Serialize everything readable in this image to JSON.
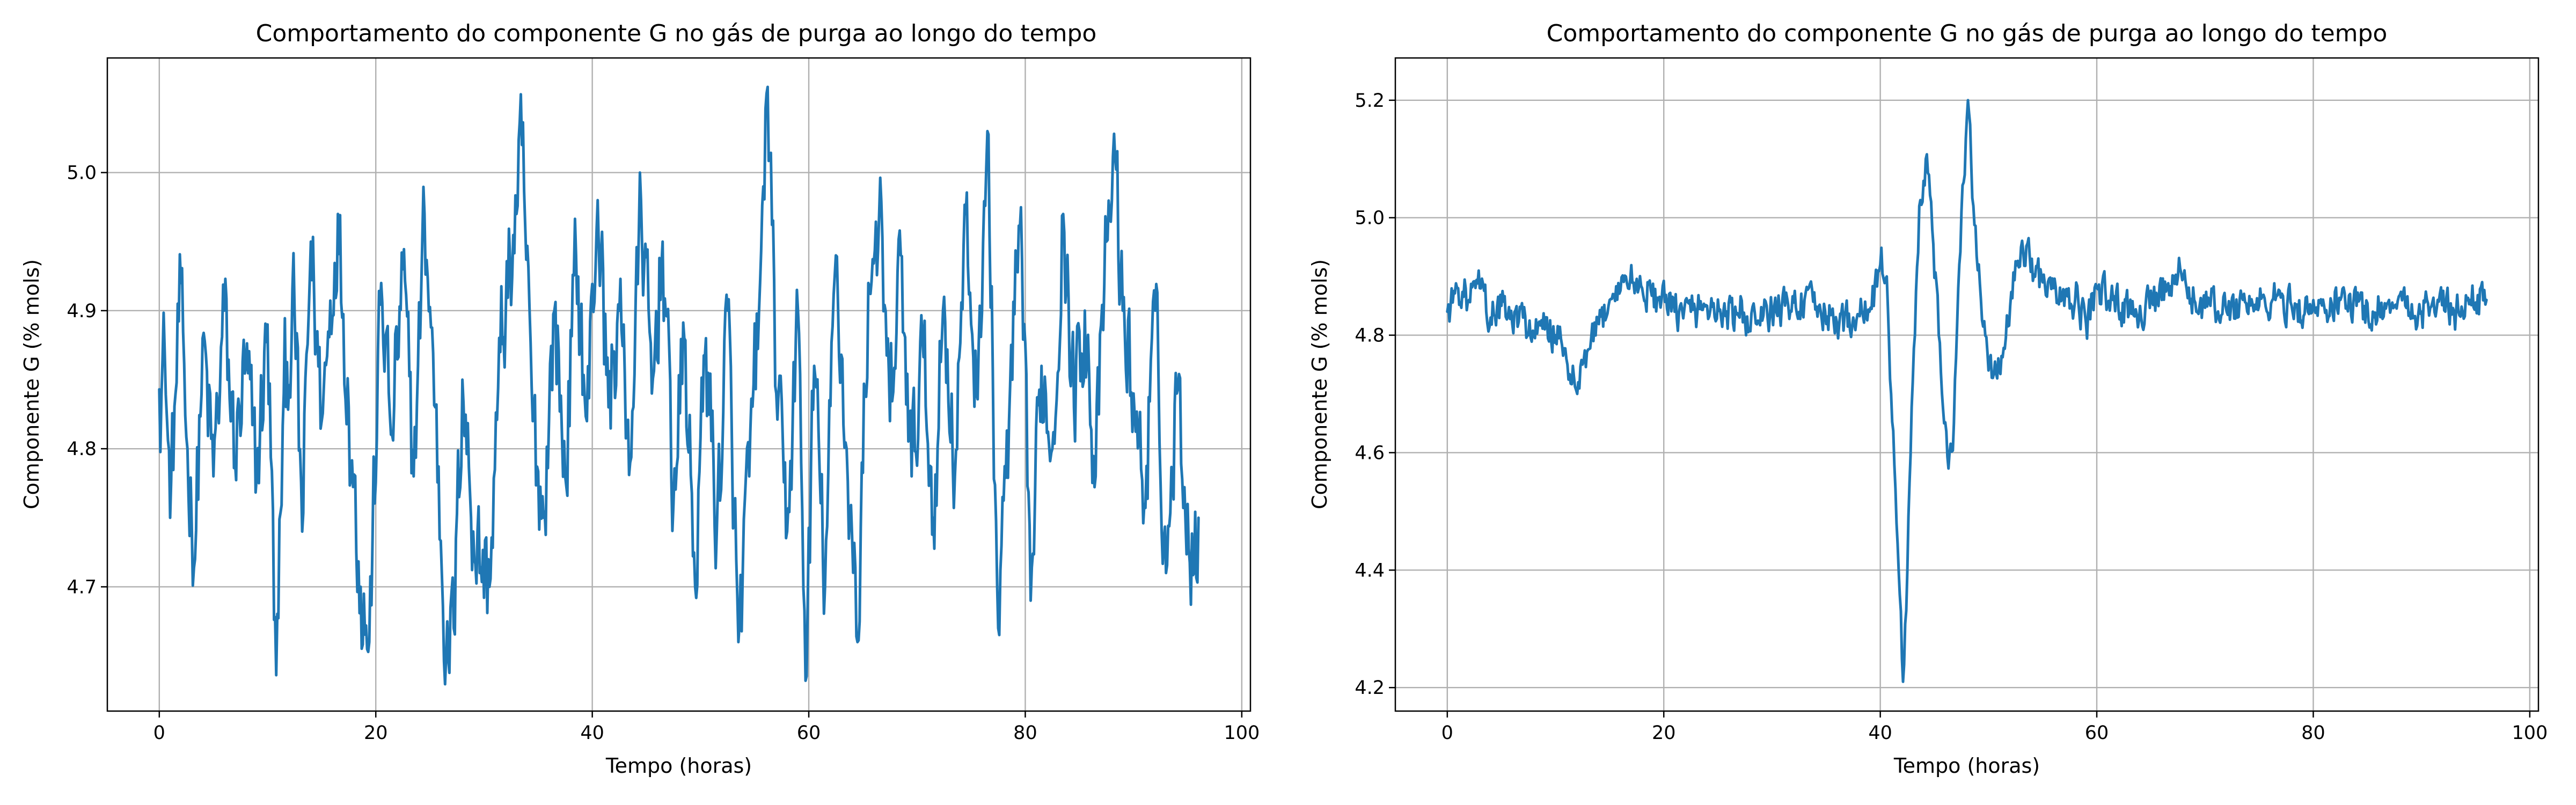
{
  "chart_data": [
    {
      "type": "line",
      "title": "Comportamento do componente G no gás de purga ao longo do tempo",
      "xlabel": "Tempo (horas)",
      "ylabel": "Componente G (% mols)",
      "xlim": [
        -4.8,
        100.8
      ],
      "ylim": [
        4.61,
        5.083
      ],
      "xticks": [
        0,
        20,
        40,
        60,
        80,
        100
      ],
      "xtick_labels": [
        "0",
        "20",
        "40",
        "60",
        "80",
        "100"
      ],
      "yticks": [
        4.7,
        4.8,
        4.9,
        5.0
      ],
      "ytick_labels": [
        "4.7",
        "4.8",
        "4.9",
        "5.0"
      ],
      "grid": true,
      "color": "#1f77b4",
      "sampling_interval_hours": 0.1,
      "series": [
        {
          "x_start": 0,
          "x_end": 96,
          "step": 0.1,
          "anchors": [
            [
              0,
              4.843
            ],
            [
              0.5,
              4.87
            ],
            [
              1,
              4.75
            ],
            [
              1.5,
              4.84
            ],
            [
              2,
              4.92
            ],
            [
              2.6,
              4.8
            ],
            [
              3.3,
              4.72
            ],
            [
              4,
              4.88
            ],
            [
              5,
              4.78
            ],
            [
              6,
              4.9
            ],
            [
              7,
              4.79
            ],
            [
              8,
              4.86
            ],
            [
              9,
              4.78
            ],
            [
              10,
              4.89
            ],
            [
              10.8,
              4.636
            ],
            [
              11.5,
              4.84
            ],
            [
              12.5,
              4.9
            ],
            [
              13.2,
              4.74
            ],
            [
              14,
              4.95
            ],
            [
              15,
              4.82
            ],
            [
              16.5,
              4.97
            ],
            [
              17.5,
              4.83
            ],
            [
              18.6,
              4.7
            ],
            [
              19.4,
              4.66
            ],
            [
              20.5,
              4.92
            ],
            [
              21.5,
              4.81
            ],
            [
              22.5,
              4.93
            ],
            [
              23.5,
              4.78
            ],
            [
              24.5,
              4.97
            ],
            [
              25.5,
              4.83
            ],
            [
              26.5,
              4.65
            ],
            [
              27.2,
              4.67
            ],
            [
              28,
              4.85
            ],
            [
              29,
              4.74
            ],
            [
              30.5,
              4.7
            ],
            [
              31.5,
              4.87
            ],
            [
              33,
              4.97
            ],
            [
              33.5,
              5.02
            ],
            [
              34.5,
              4.82
            ],
            [
              35.5,
              4.75
            ],
            [
              36.5,
              4.9
            ],
            [
              37.5,
              4.78
            ],
            [
              38.5,
              4.94
            ],
            [
              39.5,
              4.82
            ],
            [
              40.5,
              4.98
            ],
            [
              41.5,
              4.83
            ],
            [
              42.5,
              4.9
            ],
            [
              43.5,
              4.79
            ],
            [
              44.5,
              4.98
            ],
            [
              45.5,
              4.84
            ],
            [
              46.5,
              4.95
            ],
            [
              47.5,
              4.76
            ],
            [
              48.5,
              4.88
            ],
            [
              49.5,
              4.7
            ],
            [
              50.5,
              4.88
            ],
            [
              51.5,
              4.74
            ],
            [
              52.5,
              4.9
            ],
            [
              53.5,
              4.66
            ],
            [
              54.5,
              4.78
            ],
            [
              55.5,
              4.92
            ],
            [
              56.2,
              5.062
            ],
            [
              57,
              4.84
            ],
            [
              58,
              4.74
            ],
            [
              59,
              4.9
            ],
            [
              59.7,
              4.632
            ],
            [
              60.5,
              4.86
            ],
            [
              61.5,
              4.7
            ],
            [
              62.5,
              4.94
            ],
            [
              63.5,
              4.8
            ],
            [
              64.5,
              4.66
            ],
            [
              65.5,
              4.92
            ],
            [
              66.5,
              4.97
            ],
            [
              67.5,
              4.82
            ],
            [
              68.5,
              4.94
            ],
            [
              69.5,
              4.78
            ],
            [
              70.5,
              4.88
            ],
            [
              71.5,
              4.75
            ],
            [
              72.5,
              4.91
            ],
            [
              73.5,
              4.78
            ],
            [
              74.5,
              4.97
            ],
            [
              75.5,
              4.84
            ],
            [
              76.5,
              5.03
            ],
            [
              77.5,
              4.67
            ],
            [
              78.5,
              4.82
            ],
            [
              79.5,
              4.96
            ],
            [
              80.5,
              4.69
            ],
            [
              81.5,
              4.86
            ],
            [
              82.5,
              4.8
            ],
            [
              83.5,
              4.97
            ],
            [
              84.5,
              4.83
            ],
            [
              85.5,
              4.9
            ],
            [
              86.5,
              4.78
            ],
            [
              87.5,
              4.95
            ],
            [
              88.3,
              5.01
            ],
            [
              89,
              4.9
            ],
            [
              90,
              4.84
            ],
            [
              91,
              4.76
            ],
            [
              92,
              4.9
            ],
            [
              93,
              4.71
            ],
            [
              94,
              4.84
            ],
            [
              95,
              4.76
            ],
            [
              95.6,
              4.71
            ],
            [
              96,
              4.75
            ]
          ],
          "noise_amplitude": 0.06
        }
      ]
    },
    {
      "type": "line",
      "title": "Comportamento do componente G no gás de purga ao longo do tempo",
      "xlabel": "Tempo (horas)",
      "ylabel": "Componente G (% mols)",
      "xlim": [
        -4.8,
        100.8
      ],
      "ylim": [
        4.16,
        5.272
      ],
      "xticks": [
        0,
        20,
        40,
        60,
        80,
        100
      ],
      "xtick_labels": [
        "0",
        "20",
        "40",
        "60",
        "80",
        "100"
      ],
      "yticks": [
        4.2,
        4.4,
        4.6,
        4.8,
        5.0,
        5.2
      ],
      "ytick_labels": [
        "4.2",
        "4.4",
        "4.6",
        "4.8",
        "5.0",
        "5.2"
      ],
      "grid": true,
      "color": "#1f77b4",
      "sampling_interval_hours": 0.1,
      "series": [
        {
          "x_start": 0,
          "x_end": 96,
          "step": 0.1,
          "anchors": [
            [
              0,
              4.84
            ],
            [
              1,
              4.88
            ],
            [
              2,
              4.86
            ],
            [
              3,
              4.88
            ],
            [
              4,
              4.83
            ],
            [
              5,
              4.85
            ],
            [
              6,
              4.82
            ],
            [
              7,
              4.83
            ],
            [
              8,
              4.8
            ],
            [
              9,
              4.81
            ],
            [
              10,
              4.8
            ],
            [
              11,
              4.76
            ],
            [
              12,
              4.7
            ],
            [
              12.5,
              4.75
            ],
            [
              13.5,
              4.79
            ],
            [
              15,
              4.86
            ],
            [
              16.5,
              4.9
            ],
            [
              18,
              4.88
            ],
            [
              19.5,
              4.86
            ],
            [
              21,
              4.84
            ],
            [
              22.5,
              4.84
            ],
            [
              24,
              4.85
            ],
            [
              25.5,
              4.84
            ],
            [
              27,
              4.83
            ],
            [
              28.5,
              4.82
            ],
            [
              30,
              4.84
            ],
            [
              31.5,
              4.85
            ],
            [
              33,
              4.86
            ],
            [
              34.5,
              4.84
            ],
            [
              36,
              4.82
            ],
            [
              37.5,
              4.83
            ],
            [
              39,
              4.84
            ],
            [
              40,
              4.92
            ],
            [
              40.6,
              4.9
            ],
            [
              41.0,
              4.7
            ],
            [
              41.5,
              4.48
            ],
            [
              41.9,
              4.33
            ],
            [
              42.1,
              4.21
            ],
            [
              42.5,
              4.4
            ],
            [
              43.0,
              4.72
            ],
            [
              43.6,
              5.02
            ],
            [
              44.2,
              5.1
            ],
            [
              44.8,
              4.98
            ],
            [
              45.4,
              4.8
            ],
            [
              45.9,
              4.65
            ],
            [
              46.4,
              4.6
            ],
            [
              46.8,
              4.65
            ],
            [
              47.2,
              4.88
            ],
            [
              47.7,
              5.06
            ],
            [
              48.1,
              5.2
            ],
            [
              48.6,
              5.02
            ],
            [
              49.3,
              4.86
            ],
            [
              50.0,
              4.74
            ],
            [
              51.0,
              4.74
            ],
            [
              52.0,
              4.85
            ],
            [
              53.0,
              4.95
            ],
            [
              54,
              4.93
            ],
            [
              55,
              4.89
            ],
            [
              56,
              4.88
            ],
            [
              57,
              4.85
            ],
            [
              58,
              4.86
            ],
            [
              59,
              4.82
            ],
            [
              60,
              4.88
            ],
            [
              61.5,
              4.86
            ],
            [
              63,
              4.84
            ],
            [
              64.5,
              4.85
            ],
            [
              66,
              4.86
            ],
            [
              67.5,
              4.9
            ],
            [
              69,
              4.86
            ],
            [
              70.5,
              4.85
            ],
            [
              72,
              4.84
            ],
            [
              73.5,
              4.86
            ],
            [
              75,
              4.85
            ],
            [
              76.5,
              4.86
            ],
            [
              78,
              4.85
            ],
            [
              79.5,
              4.84
            ],
            [
              81,
              4.85
            ],
            [
              82.5,
              4.86
            ],
            [
              84,
              4.85
            ],
            [
              85.5,
              4.84
            ],
            [
              87,
              4.86
            ],
            [
              88.5,
              4.85
            ],
            [
              90,
              4.84
            ],
            [
              91.5,
              4.86
            ],
            [
              93,
              4.84
            ],
            [
              94.5,
              4.86
            ],
            [
              96,
              4.86
            ]
          ],
          "noise_amplitude": 0.045
        }
      ]
    }
  ]
}
